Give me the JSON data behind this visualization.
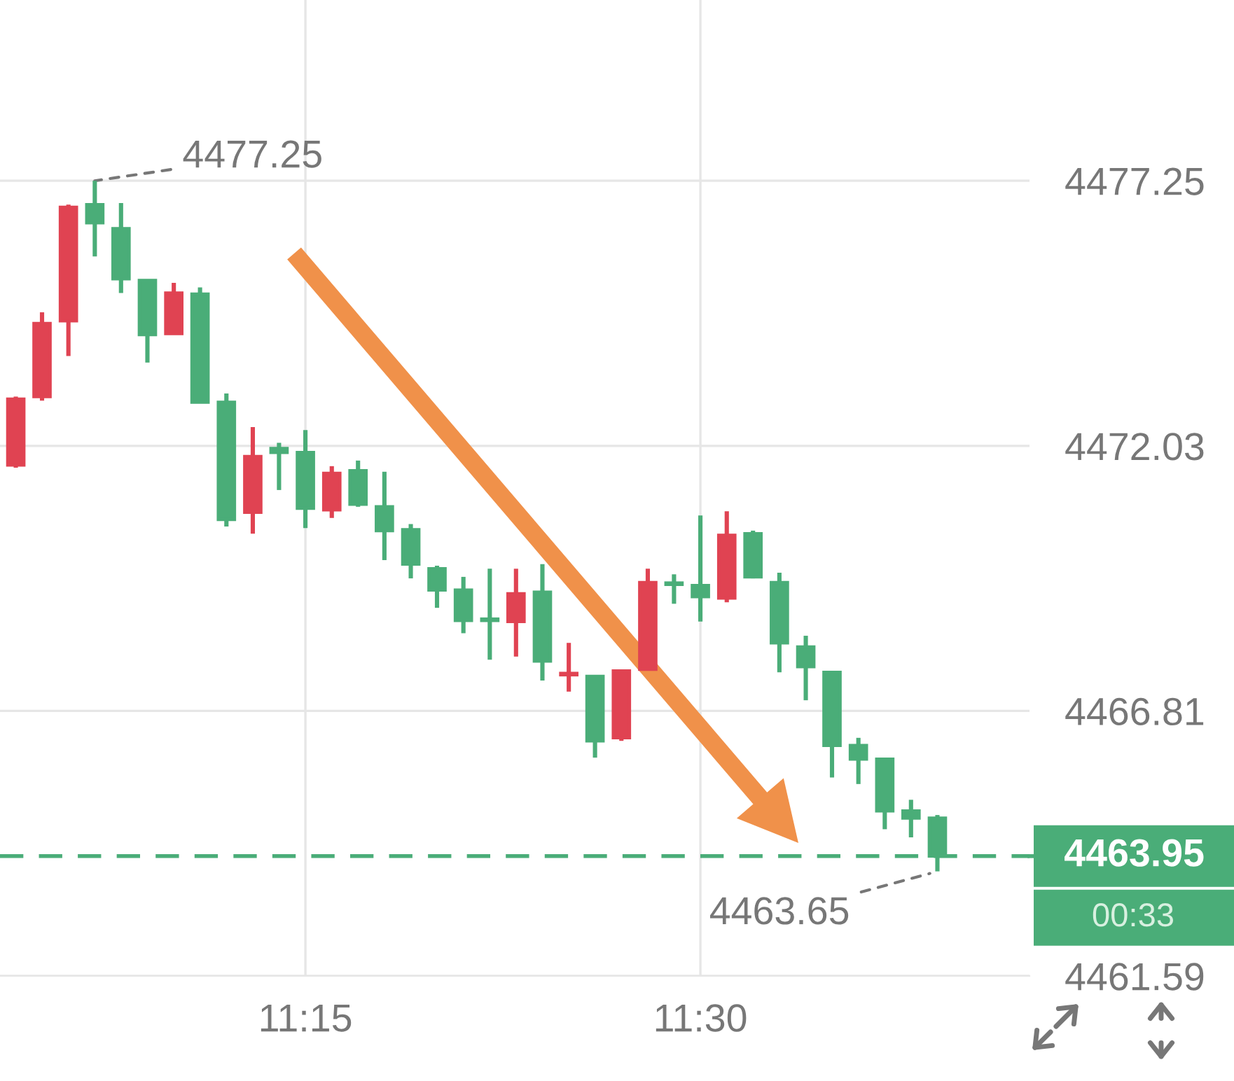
{
  "chart_data": {
    "type": "candlestick",
    "x": [
      11.0667,
      11.0833,
      11.1,
      11.1167,
      11.1333,
      11.15,
      11.1667,
      11.1833,
      11.2,
      11.2167,
      11.2333,
      11.25,
      11.2667,
      11.2833,
      11.3,
      11.3167,
      11.3333,
      11.35,
      11.3667,
      11.3833,
      11.4,
      11.4167,
      11.4333,
      11.45,
      11.4667,
      11.4833,
      11.5,
      11.5167,
      11.5333,
      11.55,
      11.5667,
      11.5833,
      11.6,
      11.6167,
      11.6333,
      11.65
    ],
    "ohlc": [
      [
        4471.65,
        4473.0,
        4471.6,
        4472.95
      ],
      [
        4473.0,
        4474.66,
        4472.92,
        4474.44
      ],
      [
        4474.49,
        4476.78,
        4473.8,
        4476.73
      ],
      [
        4476.78,
        4477.25,
        4475.76,
        4476.42
      ],
      [
        4476.31,
        4476.81,
        4475.04,
        4475.32
      ],
      [
        4475.29,
        4475.29,
        4473.67,
        4474.22
      ],
      [
        4474.24,
        4475.24,
        4474.24,
        4475.04
      ],
      [
        4475.02,
        4475.15,
        4472.89,
        4472.89
      ],
      [
        4472.89,
        4473.06,
        4470.44,
        4470.58
      ],
      [
        4470.72,
        4472.4,
        4470.3,
        4471.82
      ],
      [
        4471.98,
        4472.09,
        4471.16,
        4471.9
      ],
      [
        4471.9,
        4472.34,
        4470.41,
        4470.8
      ],
      [
        4470.77,
        4471.63,
        4470.61,
        4471.49
      ],
      [
        4471.54,
        4471.74,
        4470.83,
        4470.88
      ],
      [
        4470.83,
        4471.52,
        4469.78,
        4470.36
      ],
      [
        4470.38,
        4470.49,
        4469.42,
        4469.7
      ],
      [
        4469.61,
        4469.67,
        4468.84,
        4469.19
      ],
      [
        4469.19,
        4469.45,
        4468.34,
        4468.59
      ],
      [
        4468.62,
        4469.61,
        4467.82,
        4468.59
      ],
      [
        4468.57,
        4469.61,
        4467.88,
        4469.12
      ],
      [
        4469.15,
        4469.7,
        4467.41,
        4467.79
      ],
      [
        4467.52,
        4468.15,
        4467.19,
        4467.55
      ],
      [
        4467.49,
        4467.49,
        4465.89,
        4466.22
      ],
      [
        4466.28,
        4467.6,
        4466.22,
        4467.6
      ],
      [
        4467.63,
        4469.61,
        4467.63,
        4469.34
      ],
      [
        4469.33,
        4469.5,
        4468.92,
        4469.3
      ],
      [
        4469.28,
        4470.66,
        4468.57,
        4469.06
      ],
      [
        4469.03,
        4470.74,
        4468.95,
        4470.27
      ],
      [
        4470.3,
        4470.36,
        4469.42,
        4469.45
      ],
      [
        4469.34,
        4469.53,
        4467.57,
        4468.15
      ],
      [
        4468.07,
        4468.29,
        4467.02,
        4467.68
      ],
      [
        4467.57,
        4467.57,
        4465.5,
        4466.13
      ],
      [
        4466.13,
        4466.28,
        4465.37,
        4465.86
      ],
      [
        4465.86,
        4465.86,
        4464.48,
        4464.84
      ],
      [
        4464.84,
        4465.06,
        4464.32,
        4464.7
      ],
      [
        4464.7,
        4464.76,
        4463.65,
        4463.95
      ]
    ],
    "colors": [
      "#e04352",
      "#e04352",
      "#e04352",
      "#4aad78",
      "#4aad78",
      "#4aad78",
      "#e04352",
      "#4aad78",
      "#4aad78",
      "#e04352",
      "#4aad78",
      "#4aad78",
      "#e04352",
      "#4aad78",
      "#4aad78",
      "#4aad78",
      "#4aad78",
      "#4aad78",
      "#4aad78",
      "#e04352",
      "#4aad78",
      "#e04352",
      "#4aad78",
      "#e04352",
      "#e04352",
      "#4aad78",
      "#4aad78",
      "#e04352",
      "#4aad78",
      "#4aad78",
      "#4aad78",
      "#4aad78",
      "#4aad78",
      "#4aad78",
      "#4aad78",
      "#4aad78"
    ],
    "xlim": [
      11.0567,
      11.7083
    ],
    "ylim": [
      4461.59,
      4480.81
    ],
    "xticks": [
      {
        "value": 11.25,
        "label": "11:15"
      },
      {
        "value": 11.5,
        "label": "11:30"
      }
    ],
    "yticks": [
      4461.59,
      4466.81,
      4472.03,
      4477.25
    ],
    "grid": true,
    "ref_lines": [
      {
        "axis": "y",
        "value": 4463.95,
        "label": "4463.95",
        "color": "#4aad78",
        "line_style": "dashed"
      }
    ],
    "annotations": [
      {
        "text": "4477.25",
        "x": 11.1167,
        "y": 4477.25
      },
      {
        "text": "4463.65",
        "x": 11.65,
        "y": 4463.65
      },
      "00:33"
    ]
  }
}
